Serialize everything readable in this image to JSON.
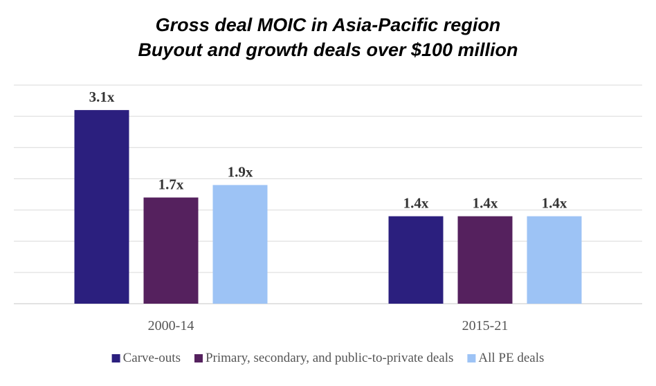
{
  "chart_data": {
    "type": "bar",
    "title": "Gross deal MOIC in Asia-Pacific region",
    "subtitle": "Buyout and growth deals over $100 million",
    "categories": [
      "2000-14",
      "2015-21"
    ],
    "series": [
      {
        "name": "Carve-outs",
        "color": "#2B1F7E",
        "values": [
          3.1,
          1.4
        ],
        "labels": [
          "3.1x",
          "1.4x"
        ]
      },
      {
        "name": "Primary, secondary, and public-to-private deals",
        "color": "#55215E",
        "values": [
          1.7,
          1.4
        ],
        "labels": [
          "1.7x",
          "1.4x"
        ]
      },
      {
        "name": "All PE deals",
        "color": "#9DC3F5",
        "values": [
          1.9,
          1.4
        ],
        "labels": [
          "1.9x",
          "1.4x"
        ]
      }
    ],
    "ylim": [
      0,
      3.5
    ],
    "grid": true,
    "legend": "bottom"
  }
}
